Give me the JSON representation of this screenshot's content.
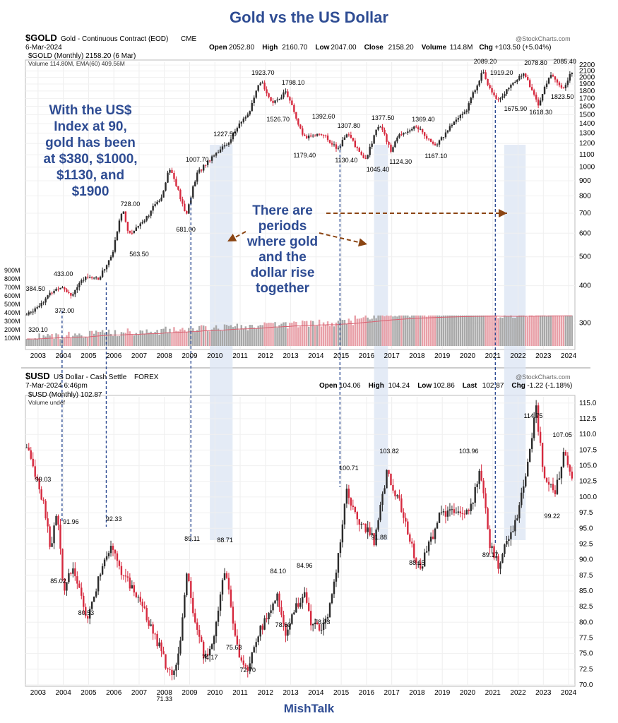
{
  "title": "Gold vs the US Dollar",
  "footer": "MishTalk",
  "colors": {
    "up": "#2b2b2b",
    "down": "#d6293e",
    "shade": "#dbe4f3",
    "dash": "#2e4c93",
    "arrow": "#8b4513",
    "annotation": "#2e4c93",
    "vol_bar": "#e8a0a8",
    "vol_bar_alt": "#a8a8a8",
    "ema": "#d96070"
  },
  "gold_panel": {
    "symbol": "$GOLD",
    "name": "Gold - Continuous Contract (EOD)",
    "exchange": "CME",
    "date": "6-Mar-2024",
    "source": "@StockCharts.com",
    "ohlc": [
      {
        "label": "Open",
        "value": "2052.80"
      },
      {
        "label": "High",
        "value": "2160.70"
      },
      {
        "label": "Low",
        "value": "2047.00"
      },
      {
        "label": "Close",
        "value": "2158.20"
      },
      {
        "label": "Volume",
        "value": "114.8M"
      },
      {
        "label": "Chg",
        "value": "+103.50 (+5.04%)"
      }
    ],
    "legend_main": "$GOLD (Monthly) 2158.20 (6 Mar)",
    "legend_volume": "Volume 114.80M, EMA(60) 409.56M"
  },
  "usd_panel": {
    "symbol": "$USD",
    "name": "US Dollar - Cash Settle",
    "exchange": "FOREX",
    "date": "7-Mar-2024 6:46pm",
    "source": "@StockCharts.com",
    "ohlc": [
      {
        "label": "Open",
        "value": "104.06"
      },
      {
        "label": "High",
        "value": "104.24"
      },
      {
        "label": "Low",
        "value": "102.86"
      },
      {
        "label": "Last",
        "value": "102.87"
      },
      {
        "label": "Chg",
        "value": "-1.22 (-1.18%)"
      }
    ],
    "legend_main": "$USD (Monthly) 102.87",
    "legend_volume": "Volume undef"
  },
  "annotations": {
    "left_text": [
      "With the US$",
      "Index at 90,",
      "gold has been",
      "at $380, $1000,",
      "$1130, and",
      "$1900"
    ],
    "center_text": [
      "There are",
      "periods",
      "where gold",
      "and the",
      "dollar rise",
      "together"
    ]
  },
  "chart_data": [
    {
      "type": "line",
      "title": "$GOLD (Monthly)",
      "y_scale": "log",
      "ylim": [
        280,
        2250
      ],
      "xlim": [
        2002.5,
        2024.25
      ],
      "yticks": [
        300,
        400,
        500,
        600,
        700,
        800,
        900,
        1000,
        1100,
        1200,
        1300,
        1400,
        1500,
        1600,
        1700,
        1800,
        1900,
        2000,
        2100,
        2200
      ],
      "xticks": [
        2003,
        2004,
        2005,
        2006,
        2007,
        2008,
        2009,
        2010,
        2011,
        2012,
        2013,
        2014,
        2015,
        2016,
        2017,
        2018,
        2019,
        2020,
        2021,
        2022,
        2023,
        2024
      ],
      "series": [
        {
          "x": [
            2002.6,
            2003.2,
            2003.6,
            2003.95,
            2004.3,
            2004.95,
            2005.4,
            2005.95,
            2006.35,
            2006.6,
            2007.3,
            2007.9,
            2008.2,
            2008.85,
            2009.3,
            2009.95,
            2010.5,
            2011.0,
            2011.4,
            2011.7,
            2011.85,
            2012.3,
            2012.8,
            2013.3,
            2013.5,
            2014.2,
            2014.9,
            2015.2,
            2015.95,
            2016.4,
            2016.6,
            2016.95,
            2017.3,
            2018.0,
            2018.7,
            2019.5,
            2020.0,
            2020.6,
            2020.8,
            2021.2,
            2021.6,
            2022.2,
            2022.8,
            2023.3,
            2023.8,
            2024.2
          ],
          "values": [
            320,
            355,
            384.5,
            400,
            372,
            433,
            420,
            510,
            728,
            590,
            680,
            800,
            1000,
            681,
            950,
            1100,
            1200,
            1400,
            1550,
            1850,
            1923.7,
            1620,
            1798.1,
            1390,
            1250,
            1300,
            1140,
            1308,
            1045.4,
            1330,
            1377.5,
            1124.3,
            1290,
            1369.4,
            1167.1,
            1420,
            1580,
            2089.2,
            1900,
            1675.9,
            1820,
            2078.8,
            1618.3,
            2050,
            1823.5,
            2158.2
          ]
        }
      ],
      "annotations": [
        "320.10",
        "384.50",
        "372.00",
        "433.00",
        "728.00",
        "563.50",
        "681.00",
        "1007.70",
        "1227.50",
        "1923.70",
        "1526.70",
        "1798.10",
        "1179.40",
        "1392.60",
        "1307.80",
        "1130.40",
        "1377.50",
        "1045.40",
        "1124.30",
        "1369.40",
        "1167.10",
        "2089.20",
        "1919.20",
        "1675.90",
        "2078.80",
        "1618.30",
        "2085.40",
        "1823.50"
      ],
      "volume_ticks": [
        "100M",
        "200M",
        "300M",
        "400M",
        "500M",
        "600M",
        "700M",
        "800M",
        "900M"
      ]
    },
    {
      "type": "line",
      "title": "$USD (Monthly)",
      "y_scale": "linear",
      "ylim": [
        70,
        116
      ],
      "xlim": [
        2002.5,
        2024.25
      ],
      "yticks": [
        "70.0",
        "72.5",
        "75.0",
        "77.5",
        "80.0",
        "82.5",
        "85.0",
        "87.5",
        "90.0",
        "92.5",
        "95.0",
        "97.5",
        "100.0",
        "102.5",
        "105.0",
        "107.5",
        "110.0",
        "112.5",
        "115.0"
      ],
      "xticks": [
        2003,
        2004,
        2005,
        2006,
        2007,
        2008,
        2009,
        2010,
        2011,
        2012,
        2013,
        2014,
        2015,
        2016,
        2017,
        2018,
        2019,
        2020,
        2021,
        2022,
        2023,
        2024
      ],
      "series": [
        {
          "x": [
            2002.55,
            2002.8,
            2003.2,
            2003.5,
            2003.75,
            2003.9,
            2004.0,
            2004.35,
            2004.95,
            2005.4,
            2005.95,
            2006.3,
            2007.0,
            2007.9,
            2008.25,
            2008.6,
            2008.9,
            2009.2,
            2009.6,
            2009.9,
            2010.4,
            2010.9,
            2011.3,
            2011.7,
            2012.5,
            2012.8,
            2013.5,
            2013.8,
            2014.1,
            2014.45,
            2014.9,
            2015.2,
            2015.6,
            2016.3,
            2016.8,
            2017.3,
            2017.8,
            2018.1,
            2018.9,
            2019.5,
            2020.1,
            2020.5,
            2020.9,
            2021.2,
            2021.9,
            2022.5,
            2022.7,
            2023.0,
            2023.5,
            2023.8,
            2024.2
          ],
          "values": [
            108,
            105,
            99.03,
            92,
            97,
            91,
            85.02,
            89,
            80.53,
            87,
            92.33,
            88,
            84,
            75,
            71.33,
            75,
            89.11,
            80,
            74.17,
            77,
            88.71,
            75.63,
            72.7,
            78,
            84.1,
            78.6,
            84.96,
            80,
            78.93,
            80,
            91,
            100.71,
            97,
            93,
            103.82,
            99,
            91.88,
            88.15,
            97,
            98,
            98,
            103.96,
            92,
            89.17,
            96,
            108,
            114.75,
            104,
            101,
            107.05,
            102.87
          ]
        }
      ],
      "annotations": [
        "99.03",
        "91.96",
        "92.33",
        "85.02",
        "80.53",
        "71.33",
        "89.11",
        "88.71",
        "74.17",
        "75.63",
        "72.70",
        "84.10",
        "78.60",
        "84.96",
        "78.93",
        "100.71",
        "103.82",
        "91.88",
        "88.15",
        "103.96",
        "89.17",
        "114.75",
        "107.05",
        "99.22"
      ]
    }
  ]
}
